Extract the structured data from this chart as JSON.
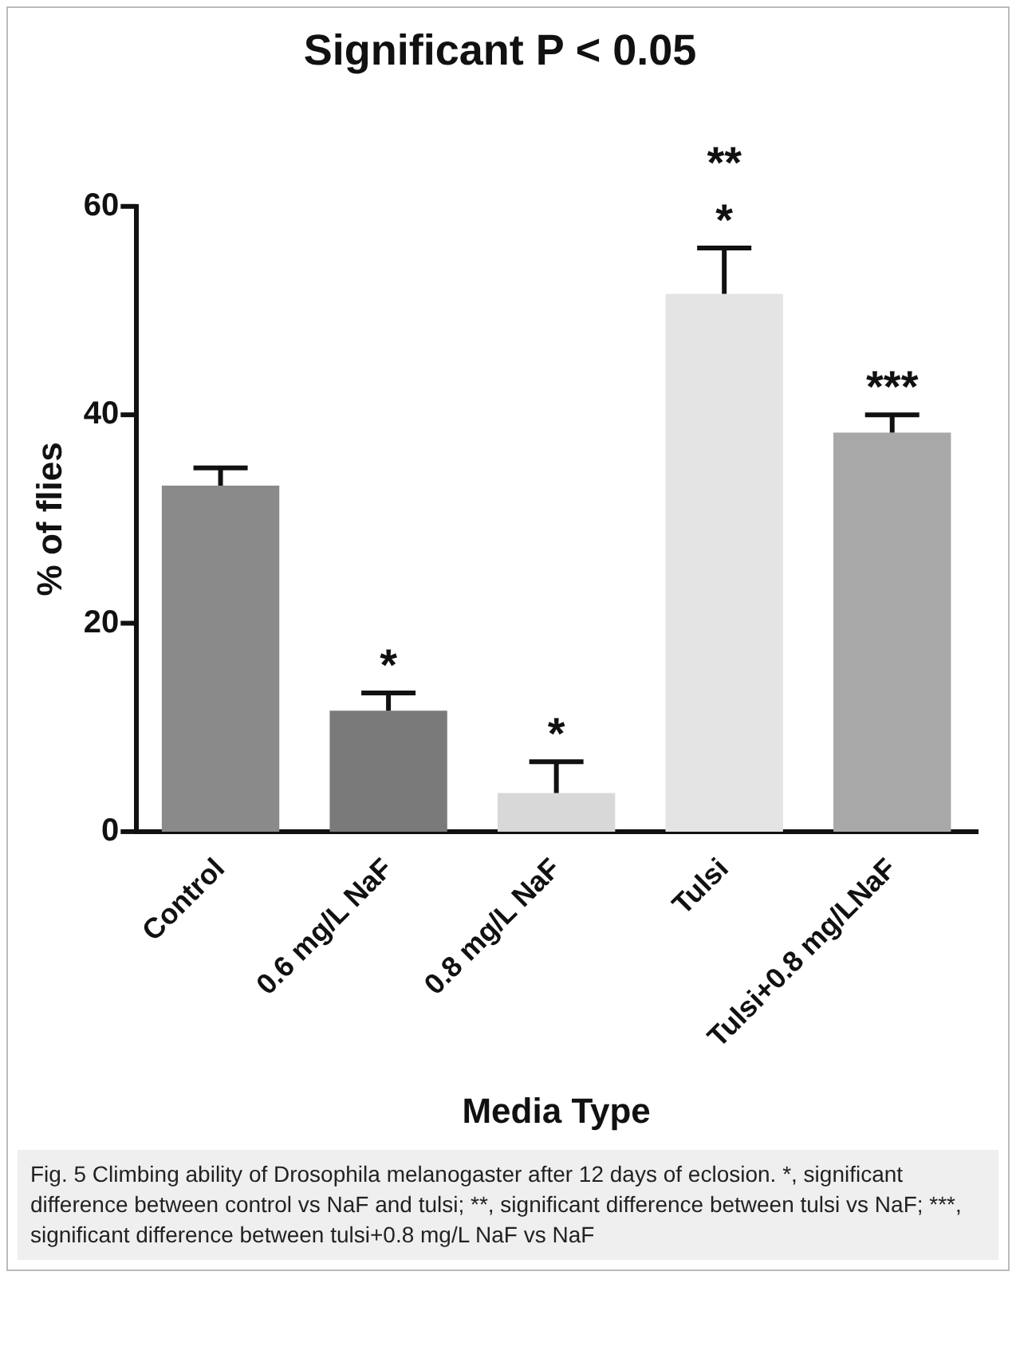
{
  "chart_data": {
    "type": "bar",
    "title": "Significant P < 0.05",
    "xlabel": "Media Type",
    "ylabel": "% of flies",
    "categories": [
      "Control",
      "0.6 mg/L NaF",
      "0.8 mg/L NaF",
      "Tulsi",
      "Tulsi+0.8 mg/LNaF"
    ],
    "values": [
      33.2,
      11.6,
      3.7,
      51.6,
      38.3
    ],
    "errors": [
      [
        33.2,
        34.9
      ],
      [
        11.6,
        13.3
      ],
      [
        3.7,
        6.7
      ],
      [
        51.6,
        56.0
      ],
      [
        38.3,
        40.0
      ]
    ],
    "colors": [
      "#8a8a8a",
      "#7a7a7a",
      "#d8d8d8",
      "#e4e4e4",
      "#a8a8a8"
    ],
    "ylim": [
      0,
      60
    ],
    "yticks": [
      0,
      20,
      40,
      60
    ],
    "grid": false,
    "legend": false,
    "annotations": [
      {
        "text": "*",
        "x": "0.6 mg/L NaF",
        "y": 13.3
      },
      {
        "text": "*",
        "x": "0.8 mg/L NaF",
        "y": 6.7
      },
      {
        "text": "*",
        "x": "Tulsi",
        "y": 56.0
      },
      {
        "text": "**",
        "x": "Tulsi",
        "y": 56.0
      },
      {
        "text": "***",
        "x": "Tulsi+0.8 mg/LNaF",
        "y": 40.0
      },
      "Fig. 5 Climbing ability of Drosophila melanogaster after 12 days of eclosion. *, significant difference between control vs NaF and tulsi; **, significant difference between tulsi vs NaF; ***, significant difference between tulsi+0.8 mg/L NaF vs NaF"
    ]
  }
}
